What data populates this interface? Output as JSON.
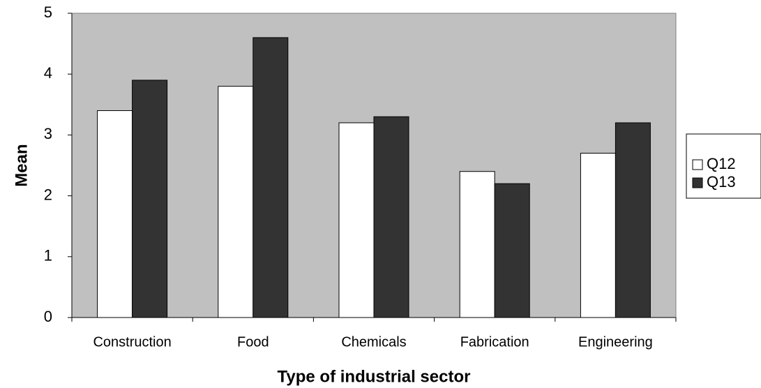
{
  "chart_data": {
    "type": "bar",
    "title": "",
    "xlabel": "Type of industrial sector",
    "ylabel": "Mean",
    "categories": [
      "Construction",
      "Food",
      "Chemicals",
      "Fabrication",
      "Engineering"
    ],
    "series": [
      {
        "name": "Q12",
        "values": [
          3.4,
          3.8,
          3.2,
          2.4,
          2.7
        ],
        "color": "#ffffff"
      },
      {
        "name": "Q13",
        "values": [
          3.9,
          4.6,
          3.3,
          2.2,
          3.2
        ],
        "color": "#333333"
      }
    ],
    "ylim": [
      0,
      5
    ],
    "yticks": [
      "0",
      "1",
      "2",
      "3",
      "4",
      "5"
    ],
    "grid": false,
    "legend": "right",
    "plot_background": "#c0c0c0"
  }
}
